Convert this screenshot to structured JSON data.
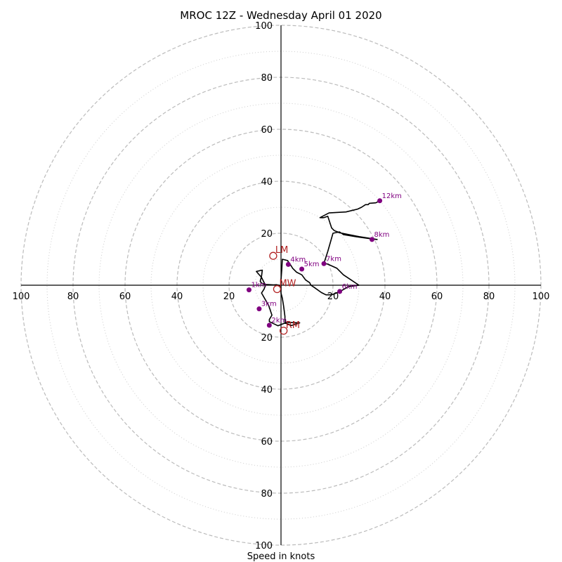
{
  "chart_data": {
    "type": "hodograph",
    "title": "MROC 12Z - Wednesday April 01 2020",
    "xlabel": "Speed in knots",
    "range": 100,
    "ring_major": [
      20,
      40,
      60,
      80,
      100
    ],
    "ring_minor": [
      10,
      30,
      50,
      70,
      90
    ],
    "x_tick_labels": [
      "100",
      "80",
      "60",
      "40",
      "20",
      "20",
      "40",
      "60",
      "80",
      "100"
    ],
    "y_tick_labels": [
      "100",
      "80",
      "60",
      "40",
      "20",
      "20",
      "40",
      "60",
      "80",
      "100"
    ],
    "colors": {
      "trace": "#000000",
      "ring": "#bbbbbb",
      "height_marker": "#800080",
      "motion_marker": "#b22222"
    },
    "hodograph_trace": [
      [
        -0.5,
        -0.5
      ],
      [
        -0.5,
        -0.2
      ],
      [
        -0.3,
        -0.1
      ],
      [
        -1.8,
        0.2
      ],
      [
        -2.8,
        0.1
      ],
      [
        -6,
        0.3
      ],
      [
        -7.5,
        0.8
      ],
      [
        -8,
        1.5
      ],
      [
        -7.5,
        3.5
      ],
      [
        -7.2,
        5.8
      ],
      [
        -9.5,
        5.3
      ],
      [
        -7.5,
        3
      ],
      [
        -6,
        0
      ],
      [
        -6.5,
        -1.5
      ],
      [
        -7.5,
        -3
      ],
      [
        -4.7,
        -7.9
      ],
      [
        -3.5,
        -11.5
      ],
      [
        -4.5,
        -13.2
      ],
      [
        -4.5,
        -14
      ],
      [
        -1.2,
        -15.6
      ],
      [
        2.2,
        -14.3
      ],
      [
        7.2,
        -14.5
      ],
      [
        4,
        -15.5
      ],
      [
        1.5,
        -14.5
      ],
      [
        1.5,
        -12
      ],
      [
        1,
        -8
      ],
      [
        0.5,
        -5
      ],
      [
        0,
        -3
      ],
      [
        0,
        2
      ],
      [
        0.3,
        6
      ],
      [
        0.5,
        10
      ],
      [
        2.5,
        9.5
      ],
      [
        4,
        7.3
      ],
      [
        4.5,
        6.5
      ],
      [
        6,
        5
      ],
      [
        8,
        4
      ],
      [
        9.5,
        2
      ],
      [
        11,
        1
      ],
      [
        11.5,
        0
      ],
      [
        13,
        -1
      ],
      [
        15.5,
        -2.8
      ],
      [
        17.3,
        -3.7
      ],
      [
        19.5,
        -3.7
      ],
      [
        22.5,
        -2.5
      ],
      [
        26,
        -0.5
      ],
      [
        30,
        0
      ],
      [
        27,
        2
      ],
      [
        24,
        4
      ],
      [
        21.5,
        6.5
      ],
      [
        18,
        8.1
      ],
      [
        16.5,
        8.4
      ],
      [
        18,
        13
      ],
      [
        20,
        20
      ],
      [
        22.5,
        20.5
      ],
      [
        24,
        19.5
      ],
      [
        30,
        18.5
      ],
      [
        35,
        17.8
      ],
      [
        37,
        17.6
      ],
      [
        30,
        18.7
      ],
      [
        22.5,
        20.2
      ],
      [
        20.5,
        21
      ],
      [
        19.5,
        22
      ],
      [
        18,
        26.5
      ],
      [
        16.5,
        26
      ],
      [
        15,
        26
      ],
      [
        18.5,
        27.8
      ],
      [
        25,
        28.2
      ],
      [
        29.5,
        29.3
      ],
      [
        31,
        30
      ],
      [
        32.5,
        31
      ],
      [
        33.5,
        31
      ],
      [
        34,
        31.5
      ],
      [
        36.5,
        31.7
      ],
      [
        38,
        32.5
      ]
    ],
    "height_markers": [
      {
        "label": "1km",
        "x": -12.3,
        "y": -1.8
      },
      {
        "label": "2km",
        "x": -4.5,
        "y": -15.4
      },
      {
        "label": "3km",
        "x": -8.4,
        "y": -9.1
      },
      {
        "label": "4km",
        "x": 2.8,
        "y": 8.0
      },
      {
        "label": "5km",
        "x": 8.0,
        "y": 6.2
      },
      {
        "label": "6km",
        "x": 22.6,
        "y": -2.4
      },
      {
        "label": "7km",
        "x": 16.5,
        "y": 8.3
      },
      {
        "label": "8km",
        "x": 35.0,
        "y": 17.6
      },
      {
        "label": "12km",
        "x": 38.0,
        "y": 32.5
      }
    ],
    "storm_motion": [
      {
        "label": "LM",
        "x": -3.0,
        "y": 11.3
      },
      {
        "label": "RM",
        "x": 1.0,
        "y": -17.5
      },
      {
        "label": "MW",
        "x": -1.5,
        "y": -1.5
      }
    ]
  }
}
